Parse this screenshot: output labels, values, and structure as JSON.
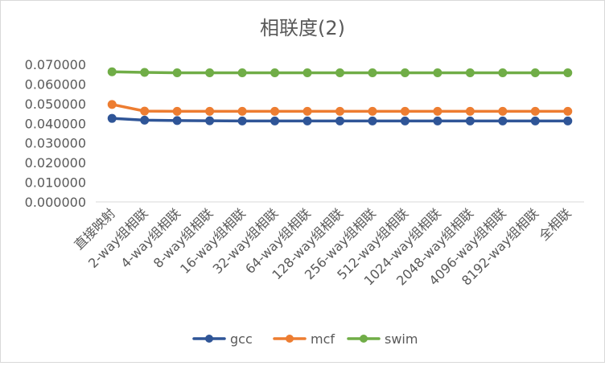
{
  "chart_data": {
    "type": "line",
    "title": "相联度(2)",
    "xlabel": "",
    "ylabel": "",
    "categories": [
      "直接映射",
      "2-way组相联",
      "4-way组相联",
      "8-way组相联",
      "16-way组相联",
      "32-way组相联",
      "64-way组相联",
      "128-way组相联",
      "256-way组相联",
      "512-way组相联",
      "1024-way组相联",
      "2048-way组相联",
      "4096-way组相联",
      "8192-way组相联",
      "全相联"
    ],
    "ylim": [
      0,
      0.07
    ],
    "yticks": [
      "0.000000",
      "0.010000",
      "0.020000",
      "0.030000",
      "0.040000",
      "0.050000",
      "0.060000",
      "0.070000"
    ],
    "grid": false,
    "legend": "bottom",
    "series": [
      {
        "name": "gcc",
        "color": "#2f5597",
        "values": [
          0.0425,
          0.0416,
          0.0414,
          0.0413,
          0.0412,
          0.0412,
          0.0412,
          0.0412,
          0.0412,
          0.0412,
          0.0412,
          0.0412,
          0.0412,
          0.0412,
          0.0412
        ]
      },
      {
        "name": "mcf",
        "color": "#ed7d31",
        "values": [
          0.0496,
          0.0462,
          0.0461,
          0.0461,
          0.0461,
          0.0461,
          0.0461,
          0.0461,
          0.0461,
          0.0461,
          0.0461,
          0.0461,
          0.0461,
          0.0461,
          0.0461
        ]
      },
      {
        "name": "swim",
        "color": "#70ad47",
        "values": [
          0.0662,
          0.0659,
          0.0657,
          0.0657,
          0.0657,
          0.0657,
          0.0657,
          0.0657,
          0.0657,
          0.0657,
          0.0657,
          0.0657,
          0.0657,
          0.0657,
          0.0657
        ]
      }
    ]
  }
}
